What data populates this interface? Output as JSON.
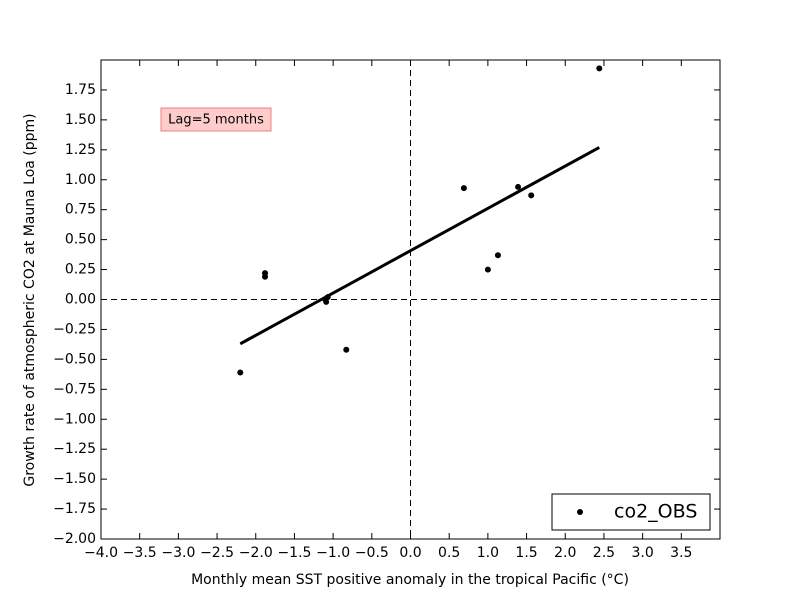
{
  "chart_data": {
    "type": "scatter",
    "x_label": "Monthly mean SST positive anomaly in the tropical Pacific (°C)",
    "y_label": "Growth rate of atmospheric CO2 at Mauna Loa (ppm)",
    "annotation": "Lag=5 months",
    "legend": "lower right",
    "series": [
      {
        "name": "co2_OBS",
        "color": "#000000",
        "x": [
          2.44,
          0.69,
          1.39,
          1.56,
          1.13,
          1.0,
          -1.88,
          -1.88,
          -1.07,
          -1.09,
          -1.1,
          -0.83,
          -2.2
        ],
        "values": [
          1.93,
          0.93,
          0.94,
          0.87,
          0.37,
          0.25,
          0.22,
          0.19,
          0.02,
          -0.02,
          0.0,
          -0.42,
          -0.61
        ]
      }
    ],
    "fit": {
      "color": "#000000",
      "x": [
        -2.2,
        2.44
      ],
      "values": [
        -0.37,
        1.27
      ]
    },
    "hlines": [
      0
    ],
    "vlines": [
      0
    ],
    "xlim": [
      -4,
      4
    ],
    "ylim": [
      -2,
      2
    ],
    "xticks": [
      {
        "value": -4,
        "label": "−4.0"
      },
      {
        "value": -3.5,
        "label": "−3.5"
      },
      {
        "value": -3,
        "label": "−3.0"
      },
      {
        "value": -2.5,
        "label": "−2.5"
      },
      {
        "value": -2,
        "label": "−2.0"
      },
      {
        "value": -1.5,
        "label": "−1.5"
      },
      {
        "value": -1,
        "label": "−1.0"
      },
      {
        "value": -0.5,
        "label": "−0.5"
      },
      {
        "value": 0,
        "label": "0.0"
      },
      0.5,
      {
        "value": 1,
        "label": "1.0"
      },
      1.5,
      {
        "value": 2,
        "label": "2.0"
      },
      2.5,
      {
        "value": 3,
        "label": "3.0"
      },
      3.5
    ],
    "yticks": [
      {
        "value": -2,
        "label": "−2.00"
      },
      {
        "value": -1.75,
        "label": "−1.75"
      },
      {
        "value": -1.5,
        "label": "−1.50"
      },
      {
        "value": -1.25,
        "label": "−1.25"
      },
      {
        "value": -1,
        "label": "−1.00"
      },
      {
        "value": -0.75,
        "label": "−0.75"
      },
      {
        "value": -0.5,
        "label": "−0.50"
      },
      {
        "value": -0.25,
        "label": "−0.25"
      },
      {
        "value": 0,
        "label": "0.00"
      },
      0.25,
      {
        "value": 0.5,
        "label": "0.50"
      },
      0.75,
      {
        "value": 1,
        "label": "1.00"
      },
      1.25,
      {
        "value": 1.5,
        "label": "1.50"
      },
      1.75
    ]
  }
}
